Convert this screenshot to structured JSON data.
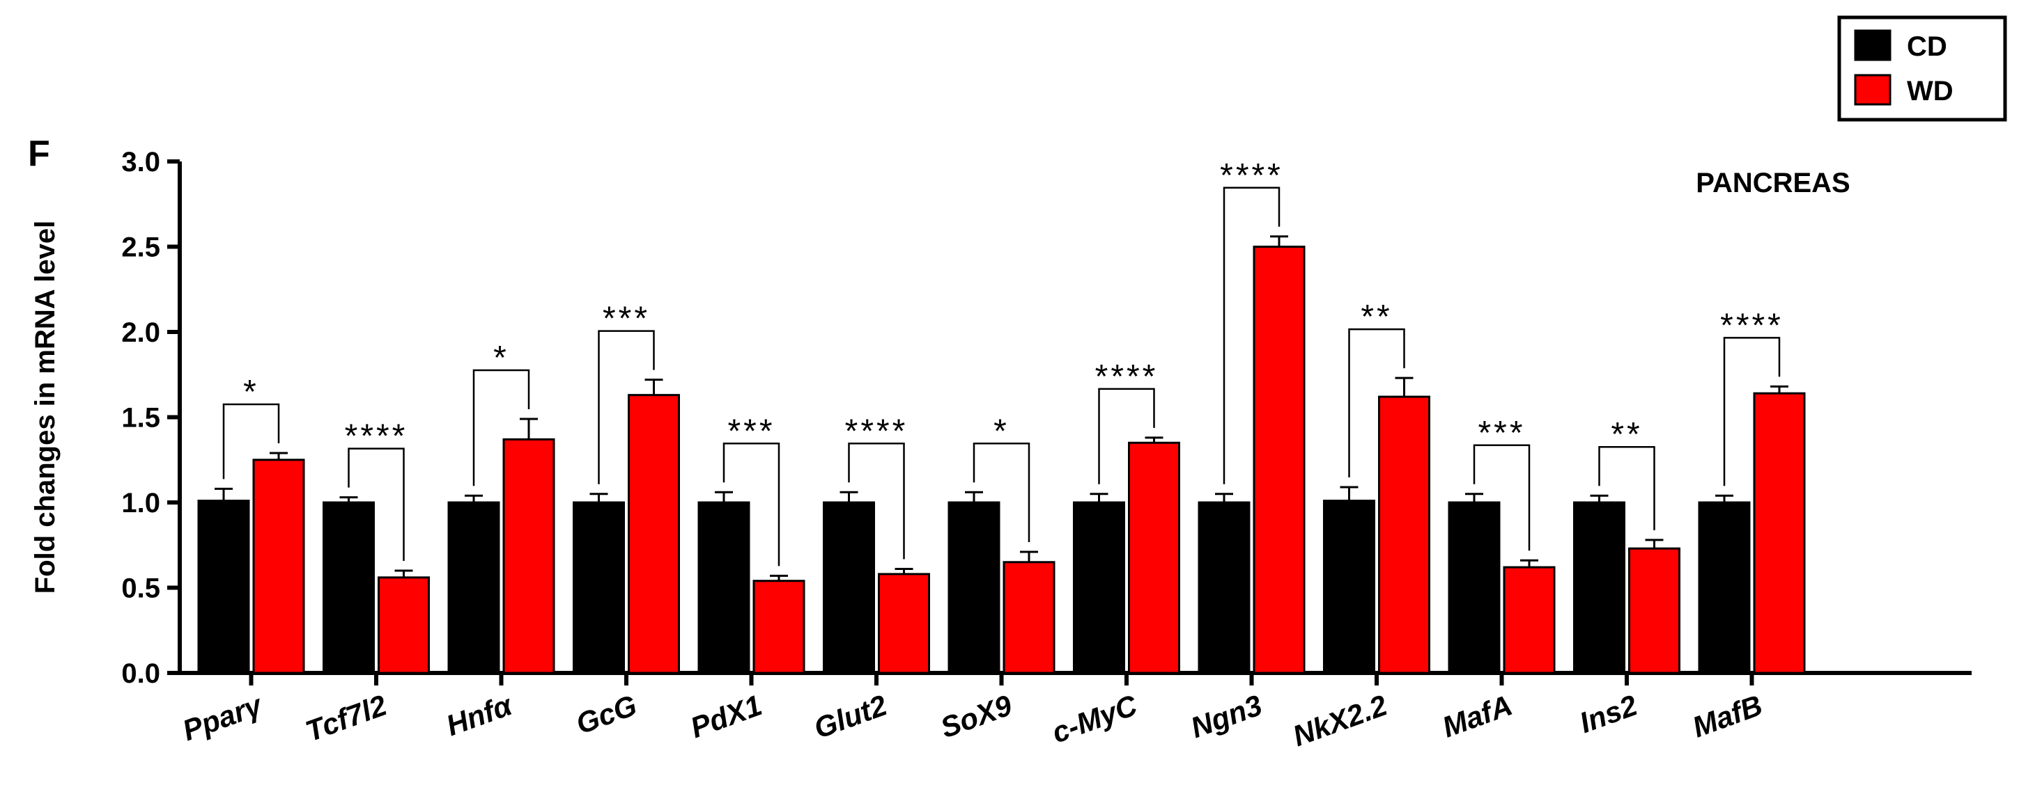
{
  "panel_label": "F",
  "colors": {
    "CD": "#000000",
    "WD": "#ff0000",
    "axis": "#000000"
  },
  "chart_data": {
    "type": "bar",
    "annotation": "PANCREAS",
    "xlabel": "",
    "ylabel": "Fold changes in mRNA level",
    "ylim": [
      0,
      3.0
    ],
    "yticks": [
      "0.0",
      "0.5",
      "1.0",
      "1.5",
      "2.0",
      "2.5",
      "3.0"
    ],
    "categories": [
      "Pparγ",
      "Tcf7l2",
      "Hnfα",
      "GcG",
      "PdX1",
      "Glut2",
      "SoX9",
      "c-MyC",
      "Ngn3",
      "NkX2.2",
      "MafA",
      "Ins2",
      "MafB"
    ],
    "series": [
      {
        "name": "CD",
        "color": "#000000",
        "values": [
          1.01,
          1.0,
          1.0,
          1.0,
          1.0,
          1.0,
          1.0,
          1.0,
          1.0,
          1.01,
          1.0,
          1.0,
          1.0
        ],
        "errors": [
          0.07,
          0.03,
          0.04,
          0.05,
          0.06,
          0.06,
          0.06,
          0.05,
          0.05,
          0.08,
          0.05,
          0.04,
          0.04
        ]
      },
      {
        "name": "WD",
        "color": "#ff0000",
        "values": [
          1.25,
          0.56,
          1.37,
          1.63,
          0.54,
          0.58,
          0.65,
          1.35,
          2.5,
          1.62,
          0.62,
          0.73,
          1.64
        ],
        "errors": [
          0.04,
          0.04,
          0.12,
          0.09,
          0.03,
          0.03,
          0.06,
          0.03,
          0.06,
          0.11,
          0.04,
          0.05,
          0.04
        ]
      }
    ],
    "significance": [
      "*",
      "****",
      "*",
      "***",
      "***",
      "****",
      "*",
      "****",
      "****",
      "**",
      "***",
      "**",
      "****"
    ],
    "legend": {
      "position": "top-right",
      "entries": [
        "CD",
        "WD"
      ]
    },
    "grid": false
  }
}
